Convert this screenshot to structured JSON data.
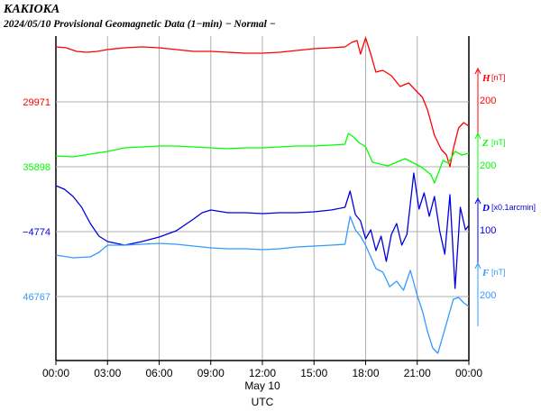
{
  "header": {
    "station": "KAKIOKA",
    "subtitle": "2024/05/10  Provisional Geomagnetic Data (1−min)  − Normal −"
  },
  "chart_data": {
    "type": "line",
    "xlabel_date": "May 10",
    "xlabel": "UTC",
    "x_ticks": [
      "00:00",
      "03:00",
      "06:00",
      "09:00",
      "12:00",
      "15:00",
      "18:00",
      "21:00",
      "00:00"
    ],
    "x_range_hours": [
      0,
      24
    ],
    "grid": true,
    "series": [
      {
        "name": "H",
        "unit": "[nT]",
        "color": "#ff0000",
        "base_label": "29971",
        "scale_label": "200",
        "points": [
          [
            0,
            52
          ],
          [
            0.6,
            53
          ],
          [
            1.2,
            57
          ],
          [
            1.8,
            58
          ],
          [
            2.4,
            57
          ],
          [
            3,
            55
          ],
          [
            4,
            53
          ],
          [
            5,
            52
          ],
          [
            6,
            53
          ],
          [
            7,
            55
          ],
          [
            8,
            57
          ],
          [
            9,
            57
          ],
          [
            10,
            58
          ],
          [
            11,
            59
          ],
          [
            12,
            59
          ],
          [
            13,
            58
          ],
          [
            14,
            56
          ],
          [
            15,
            54
          ],
          [
            16,
            53
          ],
          [
            16.8,
            52
          ],
          [
            17.2,
            47
          ],
          [
            17.5,
            45
          ],
          [
            17.7,
            60
          ],
          [
            18,
            42
          ],
          [
            18.3,
            60
          ],
          [
            18.6,
            80
          ],
          [
            19,
            78
          ],
          [
            19.5,
            84
          ],
          [
            20,
            96
          ],
          [
            20.5,
            92
          ],
          [
            20.9,
            100
          ],
          [
            21.3,
            108
          ],
          [
            21.6,
            122
          ],
          [
            22,
            150
          ],
          [
            22.4,
            166
          ],
          [
            22.7,
            172
          ],
          [
            22.9,
            185
          ],
          [
            23.1,
            165
          ],
          [
            23.4,
            142
          ],
          [
            23.7,
            136
          ],
          [
            24,
            140
          ]
        ]
      },
      {
        "name": "Z",
        "unit": "[nT]",
        "color": "#00ff00",
        "base_label": "35898",
        "scale_label": "200",
        "points": [
          [
            0,
            173
          ],
          [
            1,
            174
          ],
          [
            2,
            171
          ],
          [
            3,
            168
          ],
          [
            4,
            164
          ],
          [
            5,
            163
          ],
          [
            6,
            162
          ],
          [
            7,
            162
          ],
          [
            8,
            163
          ],
          [
            9,
            164
          ],
          [
            10,
            165
          ],
          [
            11,
            164
          ],
          [
            12,
            164
          ],
          [
            13,
            163
          ],
          [
            14,
            162
          ],
          [
            15,
            162
          ],
          [
            16,
            161
          ],
          [
            16.8,
            160
          ],
          [
            17,
            148
          ],
          [
            17.3,
            152
          ],
          [
            17.6,
            158
          ],
          [
            18,
            163
          ],
          [
            18.4,
            180
          ],
          [
            18.8,
            182
          ],
          [
            19.3,
            184
          ],
          [
            19.8,
            180
          ],
          [
            20.3,
            176
          ],
          [
            20.8,
            181
          ],
          [
            21.3,
            186
          ],
          [
            21.8,
            194
          ],
          [
            22,
            203
          ],
          [
            22.3,
            188
          ],
          [
            22.5,
            178
          ],
          [
            22.8,
            181
          ],
          [
            23.2,
            168
          ],
          [
            23.6,
            172
          ],
          [
            24,
            170
          ]
        ]
      },
      {
        "name": "D",
        "unit": "[x0.1arcmin]",
        "color": "#0000dd",
        "base_label": "−4774",
        "scale_label": "100",
        "points": [
          [
            0,
            206
          ],
          [
            0.5,
            210
          ],
          [
            1,
            218
          ],
          [
            1.5,
            230
          ],
          [
            2,
            248
          ],
          [
            2.5,
            262
          ],
          [
            3,
            268
          ],
          [
            3.5,
            270
          ],
          [
            4,
            272
          ],
          [
            5,
            268
          ],
          [
            6,
            263
          ],
          [
            7,
            256
          ],
          [
            8,
            243
          ],
          [
            8.5,
            236
          ],
          [
            9,
            233
          ],
          [
            10,
            236
          ],
          [
            11,
            236
          ],
          [
            12,
            237
          ],
          [
            13,
            236
          ],
          [
            14,
            236
          ],
          [
            15,
            235
          ],
          [
            16,
            233
          ],
          [
            16.8,
            230
          ],
          [
            17.1,
            212
          ],
          [
            17.4,
            238
          ],
          [
            17.7,
            245
          ],
          [
            18,
            265
          ],
          [
            18.3,
            255
          ],
          [
            18.6,
            278
          ],
          [
            18.9,
            262
          ],
          [
            19.2,
            290
          ],
          [
            19.5,
            260
          ],
          [
            19.8,
            248
          ],
          [
            20.1,
            272
          ],
          [
            20.4,
            260
          ],
          [
            20.8,
            192
          ],
          [
            21.1,
            232
          ],
          [
            21.4,
            214
          ],
          [
            21.7,
            240
          ],
          [
            22,
            218
          ],
          [
            22.3,
            256
          ],
          [
            22.6,
            282
          ],
          [
            22.9,
            216
          ],
          [
            23.2,
            320
          ],
          [
            23.5,
            230
          ],
          [
            23.8,
            255
          ],
          [
            24,
            250
          ]
        ]
      },
      {
        "name": "F",
        "unit": "[nT]",
        "color": "#3399ff",
        "base_label": "46767",
        "scale_label": "200",
        "points": [
          [
            0,
            283
          ],
          [
            1,
            286
          ],
          [
            2,
            285
          ],
          [
            2.5,
            280
          ],
          [
            3,
            272
          ],
          [
            4,
            272
          ],
          [
            5,
            271
          ],
          [
            6,
            270
          ],
          [
            7,
            271
          ],
          [
            8,
            273
          ],
          [
            9,
            275
          ],
          [
            10,
            276
          ],
          [
            11,
            276
          ],
          [
            12,
            277
          ],
          [
            13,
            276
          ],
          [
            14,
            274
          ],
          [
            15,
            273
          ],
          [
            16,
            272
          ],
          [
            16.8,
            271
          ],
          [
            17.1,
            240
          ],
          [
            17.4,
            255
          ],
          [
            17.7,
            262
          ],
          [
            18,
            272
          ],
          [
            18.3,
            285
          ],
          [
            18.6,
            298
          ],
          [
            19,
            302
          ],
          [
            19.4,
            318
          ],
          [
            19.8,
            312
          ],
          [
            20.2,
            322
          ],
          [
            20.6,
            300
          ],
          [
            21,
            328
          ],
          [
            21.3,
            345
          ],
          [
            21.6,
            368
          ],
          [
            21.9,
            386
          ],
          [
            22.2,
            392
          ],
          [
            22.5,
            372
          ],
          [
            22.8,
            352
          ],
          [
            23.1,
            332
          ],
          [
            23.4,
            330
          ],
          [
            23.7,
            336
          ],
          [
            24,
            340
          ]
        ]
      }
    ]
  }
}
